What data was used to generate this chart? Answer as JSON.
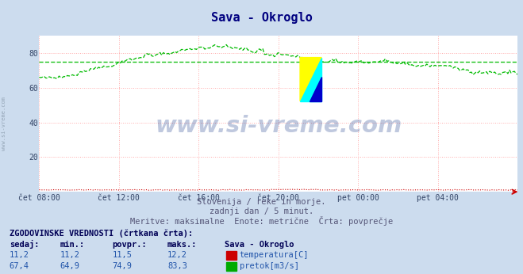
{
  "title": "Sava - Okroglo",
  "title_color": "#000080",
  "bg_color": "#ccdcee",
  "plot_bg_color": "#ffffff",
  "grid_color": "#ffaaaa",
  "x_labels": [
    "čet 08:00",
    "čet 12:00",
    "čet 16:00",
    "čet 20:00",
    "pet 00:00",
    "pet 04:00"
  ],
  "yticks": [
    20,
    40,
    60,
    80
  ],
  "ylim": [
    0,
    90
  ],
  "flow_avg": 74.9,
  "watermark_text": "www.si-vreme.com",
  "watermark_color": "#1a3a8a",
  "watermark_alpha": 0.28,
  "sub_text1": "Slovenija / reke in morje.",
  "sub_text2": "zadnji dan / 5 minut.",
  "sub_text3": "Meritve: maksimalne  Enote: metrične  Črta: povprečje",
  "sub_text_color": "#555577",
  "legend_title": "ZGODOVINSKE VREDNOSTI (črtkana črta):",
  "legend_header": [
    "sedaj:",
    "min.:",
    "povpr.:",
    "maks.:"
  ],
  "legend_row1": [
    "11,2",
    "11,2",
    "11,5",
    "12,2"
  ],
  "legend_row2": [
    "67,4",
    "64,9",
    "74,9",
    "83,3"
  ],
  "legend_label1": "temperatura[C]",
  "legend_label2": "pretok[m3/s]",
  "legend_color1": "#cc0000",
  "legend_color2": "#00aa00",
  "flow_color": "#00bb00",
  "temp_color": "#cc0000",
  "arrow_color": "#cc0000",
  "side_text_color": "#8899aa",
  "logo_yellow": "#ffff00",
  "logo_cyan": "#00ffff",
  "logo_blue": "#0000cc"
}
